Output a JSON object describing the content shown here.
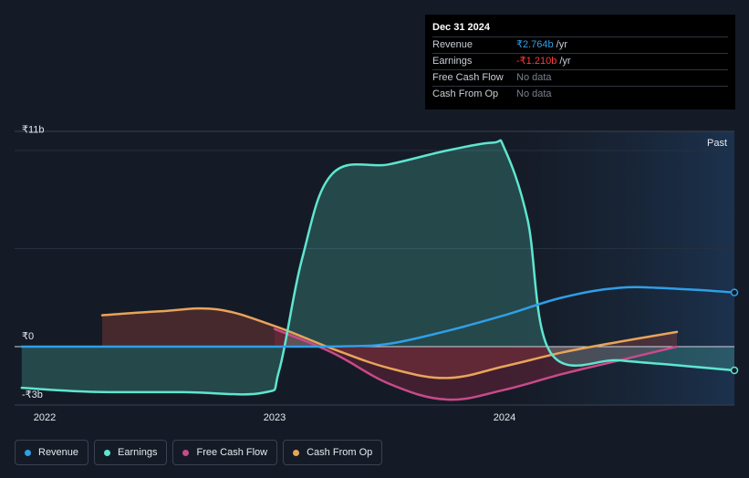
{
  "tooltip": {
    "date": "Dec 31 2024",
    "rows": [
      {
        "label": "Revenue",
        "value": "₹2.764b",
        "unit": "/yr",
        "color": "#2f9fe8"
      },
      {
        "label": "Earnings",
        "value": "-₹1.210b",
        "unit": "/yr",
        "color": "#ff3b3b"
      },
      {
        "label": "Free Cash Flow",
        "value": "No data",
        "unit": "",
        "color": "#7a808b"
      },
      {
        "label": "Cash From Op",
        "value": "No data",
        "unit": "",
        "color": "#7a808b"
      }
    ]
  },
  "past_label": "Past",
  "legend": [
    {
      "label": "Revenue",
      "color": "#2f9fe8"
    },
    {
      "label": "Earnings",
      "color": "#5ee6d0"
    },
    {
      "label": "Free Cash Flow",
      "color": "#c94a8a"
    },
    {
      "label": "Cash From Op",
      "color": "#e8a45a"
    }
  ],
  "colors": {
    "revenue": "#2f9fe8",
    "earnings": "#5ee6d0",
    "fcf": "#c94a8a",
    "cfo": "#e8a45a",
    "background": "#151b26"
  },
  "chart_data": {
    "type": "line",
    "y_tick_labels": [
      "₹11b",
      "₹0",
      "-₹3b"
    ],
    "x_tick_labels": [
      "2022",
      "2023",
      "2024"
    ],
    "ylim": [
      -3,
      11
    ],
    "xlim": [
      2021.9,
      2025.0
    ],
    "series": [
      {
        "name": "Revenue",
        "points": [
          [
            2021.9,
            0
          ],
          [
            2022.5,
            0
          ],
          [
            2023.0,
            0
          ],
          [
            2023.3,
            0.02
          ],
          [
            2023.5,
            0.15
          ],
          [
            2023.75,
            0.8
          ],
          [
            2024.0,
            1.6
          ],
          [
            2024.25,
            2.5
          ],
          [
            2024.5,
            3.0
          ],
          [
            2024.75,
            2.95
          ],
          [
            2025.0,
            2.764
          ]
        ]
      },
      {
        "name": "Earnings",
        "points": [
          [
            2021.9,
            -2.1
          ],
          [
            2022.2,
            -2.3
          ],
          [
            2022.6,
            -2.32
          ],
          [
            2022.95,
            -2.35
          ],
          [
            2023.02,
            -1.2
          ],
          [
            2023.12,
            4.5
          ],
          [
            2023.25,
            8.8
          ],
          [
            2023.5,
            9.3
          ],
          [
            2023.75,
            10.0
          ],
          [
            2023.95,
            10.4
          ],
          [
            2024.0,
            10.1
          ],
          [
            2024.1,
            6.5
          ],
          [
            2024.2,
            -0.3
          ],
          [
            2024.5,
            -0.7
          ],
          [
            2024.75,
            -0.95
          ],
          [
            2025.0,
            -1.21
          ]
        ]
      },
      {
        "name": "Free Cash Flow",
        "points": [
          [
            2023.0,
            0.9
          ],
          [
            2023.25,
            -0.3
          ],
          [
            2023.5,
            -1.9
          ],
          [
            2023.75,
            -2.7
          ],
          [
            2024.0,
            -2.2
          ],
          [
            2024.25,
            -1.4
          ],
          [
            2024.5,
            -0.7
          ],
          [
            2024.75,
            0
          ]
        ]
      },
      {
        "name": "Cash From Op",
        "points": [
          [
            2022.25,
            1.6
          ],
          [
            2022.5,
            1.8
          ],
          [
            2022.75,
            1.9
          ],
          [
            2023.0,
            1.05
          ],
          [
            2023.25,
            -0.1
          ],
          [
            2023.5,
            -1.1
          ],
          [
            2023.75,
            -1.6
          ],
          [
            2024.0,
            -1.0
          ],
          [
            2024.25,
            -0.3
          ],
          [
            2024.5,
            0.25
          ],
          [
            2024.75,
            0.75
          ]
        ]
      }
    ]
  }
}
